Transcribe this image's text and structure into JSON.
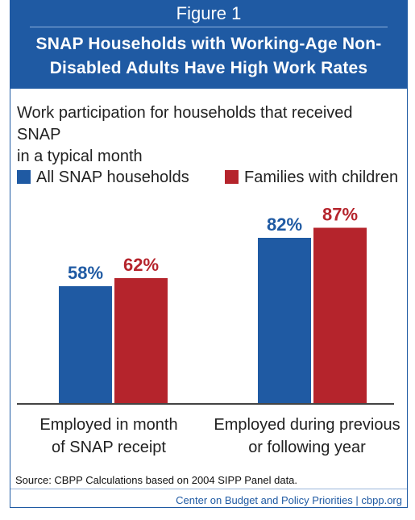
{
  "header": {
    "figure_label": "Figure 1",
    "title_line1": "SNAP Households with Working-Age Non-",
    "title_line2": "Disabled Adults Have High Work Rates"
  },
  "colors": {
    "header_bg": "#1f5aa3",
    "series_blue": "#1f5aa3",
    "series_red": "#b5242c"
  },
  "chart_data": {
    "type": "bar",
    "title": "SNAP Households with Working-Age Non-Disabled Adults Have High Work Rates",
    "subtitle_line1": "Work participation for households that received SNAP",
    "subtitle_line2": "in a typical month",
    "categories": [
      {
        "line1": "Employed in month",
        "line2": "of SNAP receipt"
      },
      {
        "line1": "Employed during previous",
        "line2": "or following year"
      }
    ],
    "series": [
      {
        "name": "All SNAP households",
        "color": "#1f5aa3",
        "values": [
          58,
          82
        ],
        "labels": [
          "58%",
          "82%"
        ]
      },
      {
        "name": "Families with children",
        "color": "#b5242c",
        "values": [
          62,
          87
        ],
        "labels": [
          "62%",
          "87%"
        ]
      }
    ],
    "ylim": [
      0,
      100
    ],
    "grid": false,
    "legend_position": "top-left"
  },
  "footer": {
    "source": "Source: CBPP Calculations based on 2004 SIPP Panel data.",
    "credit": "Center on Budget and Policy Priorities | cbpp.org"
  }
}
